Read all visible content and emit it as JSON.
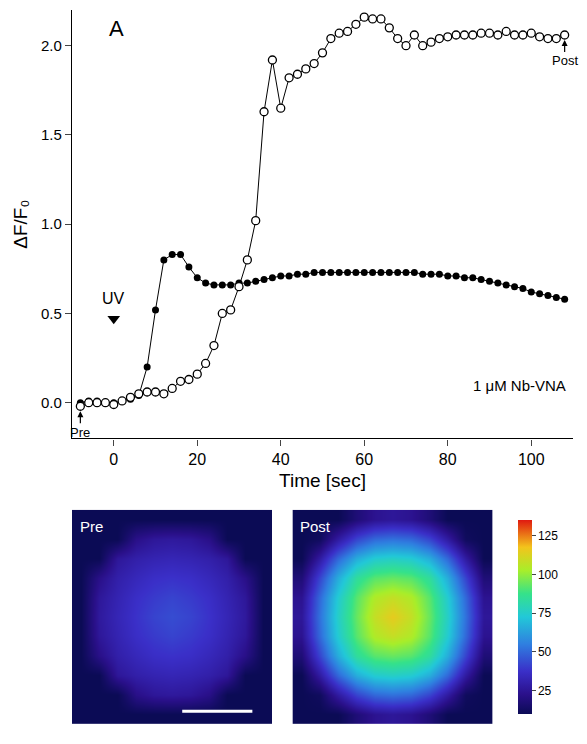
{
  "chart_data": [
    {
      "type": "line",
      "panel_label": "A",
      "x_label": "Time [sec]",
      "y_label": "ΔF/F₀",
      "x": [
        -8,
        -6,
        -4,
        -2,
        0,
        2,
        4,
        6,
        8,
        10,
        12,
        14,
        16,
        18,
        20,
        22,
        24,
        26,
        28,
        30,
        32,
        34,
        36,
        38,
        40,
        42,
        44,
        46,
        48,
        50,
        52,
        54,
        56,
        58,
        60,
        62,
        64,
        66,
        68,
        70,
        72,
        74,
        76,
        78,
        80,
        82,
        84,
        86,
        88,
        90,
        92,
        94,
        96,
        98,
        100,
        102,
        104,
        106,
        108
      ],
      "series": [
        {
          "marker": "filled",
          "color": "#000000",
          "values": [
            0.0,
            0.01,
            0.01,
            0.0,
            0.0,
            0.01,
            0.02,
            0.04,
            0.2,
            0.52,
            0.8,
            0.83,
            0.83,
            0.76,
            0.7,
            0.67,
            0.66,
            0.66,
            0.66,
            0.67,
            0.67,
            0.68,
            0.69,
            0.7,
            0.71,
            0.71,
            0.72,
            0.72,
            0.73,
            0.73,
            0.73,
            0.73,
            0.73,
            0.73,
            0.73,
            0.73,
            0.73,
            0.73,
            0.73,
            0.73,
            0.73,
            0.72,
            0.72,
            0.72,
            0.71,
            0.71,
            0.7,
            0.7,
            0.69,
            0.68,
            0.67,
            0.66,
            0.65,
            0.64,
            0.62,
            0.61,
            0.6,
            0.59,
            0.58
          ]
        },
        {
          "marker": "open",
          "color": "#000000",
          "values": [
            -0.02,
            0.0,
            0.0,
            0.0,
            -0.01,
            0.01,
            0.03,
            0.05,
            0.06,
            0.06,
            0.05,
            0.08,
            0.12,
            0.13,
            0.16,
            0.22,
            0.32,
            0.5,
            0.52,
            0.65,
            0.8,
            1.02,
            1.63,
            1.92,
            1.65,
            1.82,
            1.84,
            1.87,
            1.9,
            1.96,
            2.04,
            2.07,
            2.08,
            2.12,
            2.16,
            2.15,
            2.15,
            2.1,
            2.04,
            2.0,
            2.06,
            2.0,
            2.02,
            2.04,
            2.05,
            2.06,
            2.06,
            2.06,
            2.07,
            2.07,
            2.06,
            2.08,
            2.06,
            2.06,
            2.07,
            2.05,
            2.04,
            2.04,
            2.06
          ]
        }
      ],
      "xlim": [
        -10,
        110
      ],
      "xticks": [
        0,
        20,
        40,
        60,
        80,
        100
      ],
      "ylim": [
        -0.2,
        2.2
      ],
      "yticks": [
        {
          "value": 0,
          "label": "0.0"
        },
        {
          "value": 0.5,
          "label": "0.5"
        },
        {
          "value": 1,
          "label": "1.0"
        },
        {
          "value": 1.5,
          "label": "1.5"
        },
        {
          "value": 2,
          "label": "2.0"
        }
      ],
      "grid": false,
      "annotations": [
        {
          "text": "UV",
          "x": 0,
          "y": 0.47,
          "marker": "triangle-down"
        },
        {
          "text": "1 μM Nb-VNA"
        },
        {
          "text": "Pre",
          "x": -8,
          "y": -0.02
        },
        {
          "text": "Post",
          "x": 108,
          "y": 2.06
        }
      ]
    },
    {
      "type": "heatmap",
      "color_range": [
        10,
        135
      ],
      "colorbar_ticks": [
        25,
        50,
        75,
        100,
        125
      ],
      "panels": [
        {
          "title": "Pre",
          "cells": [
            [
              10,
              10,
              10,
              10,
              10,
              10,
              10,
              10,
              10,
              10,
              10
            ],
            [
              10,
              10,
              10,
              22,
              26,
              27,
              26,
              22,
              10,
              10,
              10
            ],
            [
              10,
              10,
              26,
              30,
              32,
              33,
              32,
              30,
              26,
              10,
              10
            ],
            [
              10,
              22,
              30,
              34,
              37,
              38,
              37,
              34,
              30,
              22,
              10
            ],
            [
              10,
              26,
              32,
              37,
              40,
              42,
              40,
              37,
              32,
              26,
              10
            ],
            [
              10,
              27,
              33,
              38,
              42,
              44,
              42,
              38,
              33,
              27,
              10
            ],
            [
              10,
              26,
              32,
              37,
              40,
              42,
              40,
              37,
              32,
              26,
              10
            ],
            [
              10,
              22,
              30,
              34,
              37,
              38,
              37,
              34,
              30,
              22,
              10
            ],
            [
              10,
              10,
              26,
              30,
              32,
              33,
              32,
              30,
              26,
              10,
              10
            ],
            [
              10,
              10,
              10,
              22,
              26,
              27,
              26,
              22,
              10,
              10,
              10
            ],
            [
              10,
              10,
              10,
              10,
              10,
              10,
              10,
              10,
              10,
              10,
              10
            ]
          ]
        },
        {
          "title": "Post",
          "cells": [
            [
              10,
              10,
              10,
              18,
              24,
              26,
              24,
              18,
              10,
              10,
              10
            ],
            [
              10,
              12,
              28,
              42,
              50,
              52,
              50,
              42,
              28,
              12,
              10
            ],
            [
              10,
              28,
              50,
              66,
              74,
              76,
              74,
              66,
              50,
              28,
              10
            ],
            [
              18,
              42,
              66,
              84,
              92,
              94,
              92,
              84,
              66,
              42,
              18
            ],
            [
              24,
              50,
              74,
              92,
              104,
              108,
              104,
              92,
              74,
              50,
              24
            ],
            [
              26,
              52,
              76,
              94,
              108,
              115,
              108,
              94,
              76,
              52,
              26
            ],
            [
              24,
              50,
              74,
              92,
              104,
              108,
              104,
              92,
              74,
              50,
              24
            ],
            [
              18,
              42,
              66,
              84,
              92,
              94,
              92,
              84,
              66,
              42,
              18
            ],
            [
              10,
              28,
              50,
              66,
              74,
              76,
              74,
              66,
              50,
              28,
              10
            ],
            [
              10,
              12,
              28,
              42,
              50,
              52,
              50,
              42,
              28,
              12,
              10
            ],
            [
              10,
              10,
              10,
              18,
              24,
              26,
              24,
              18,
              10,
              10,
              10
            ]
          ]
        }
      ]
    }
  ]
}
